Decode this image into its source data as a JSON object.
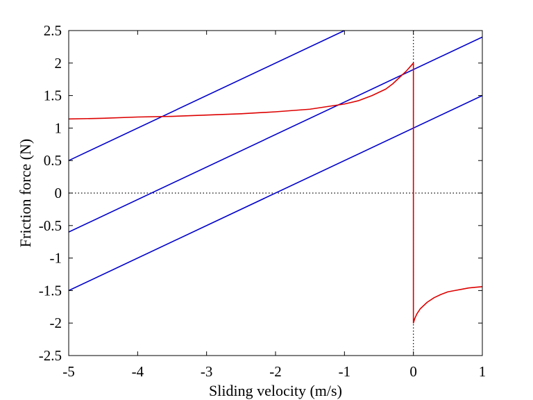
{
  "chart_data": {
    "type": "line",
    "title": "",
    "xlabel": "Sliding velocity (m/s)",
    "ylabel": "Friction force (N)",
    "xlim": [
      -5,
      1
    ],
    "ylim": [
      -2.5,
      2.5
    ],
    "xticks": [
      -5,
      -4,
      -3,
      -2,
      -1,
      0,
      1
    ],
    "xtick_labels": [
      "-5",
      "-4",
      "-3",
      "-2",
      "-1",
      "0",
      "1"
    ],
    "yticks": [
      -2.5,
      -2,
      -1.5,
      -1,
      -0.5,
      0,
      0.5,
      1,
      1.5,
      2,
      2.5
    ],
    "ytick_labels": [
      "-2.5",
      "-2",
      "-1.5",
      "-1",
      "-0.5",
      "0",
      "0.5",
      "1",
      "1.5",
      "2",
      "2.5"
    ],
    "grid": false,
    "reference_lines": [
      {
        "orientation": "horizontal",
        "value": 0,
        "style": "dotted"
      },
      {
        "orientation": "vertical",
        "value": 0,
        "style": "dotted"
      }
    ],
    "series": [
      {
        "color": "#0000cc",
        "x": [
          -5,
          -1
        ],
        "y": [
          0.5,
          2.5
        ]
      },
      {
        "color": "#0000cc",
        "x": [
          -5,
          1
        ],
        "y": [
          -0.6,
          2.4
        ]
      },
      {
        "color": "#0000cc",
        "x": [
          -5,
          1
        ],
        "y": [
          -1.5,
          1.5
        ]
      },
      {
        "color": "#dd0000",
        "x": [
          -5,
          -4.5,
          -4,
          -3.5,
          -3,
          -2.5,
          -2,
          -1.5,
          -1,
          -0.8,
          -0.6,
          -0.4,
          -0.3,
          -0.2,
          -0.1,
          -0.05,
          0,
          0,
          0.02,
          0.05,
          0.1,
          0.2,
          0.3,
          0.4,
          0.5,
          0.6,
          0.7,
          0.8,
          0.9,
          1
        ],
        "y": [
          1.14,
          1.15,
          1.17,
          1.18,
          1.2,
          1.22,
          1.25,
          1.29,
          1.37,
          1.42,
          1.5,
          1.6,
          1.68,
          1.78,
          1.88,
          1.94,
          2.0,
          -2.0,
          -1.93,
          -1.86,
          -1.78,
          -1.68,
          -1.61,
          -1.56,
          -1.52,
          -1.5,
          -1.48,
          -1.46,
          -1.45,
          -1.44
        ]
      }
    ]
  }
}
